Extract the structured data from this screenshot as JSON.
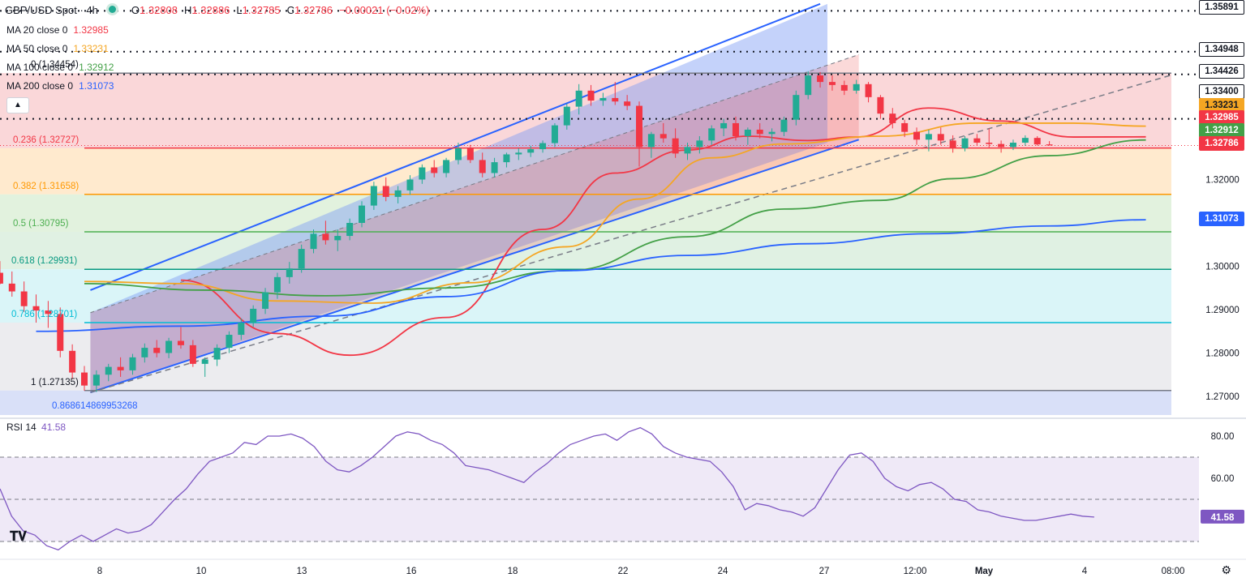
{
  "header": {
    "symbol": "GBP/USD Spot · 4h",
    "ohlc": [
      {
        "k": "O",
        "v": "1.32808"
      },
      {
        "k": "H",
        "v": "1.32886"
      },
      {
        "k": "L",
        "v": "1.32785"
      },
      {
        "k": "C",
        "v": "1.32786"
      },
      {
        "k": "",
        "v": "−0.00021 (−0.02%)"
      }
    ]
  },
  "indicators": [
    {
      "label": "MA 20 close 0",
      "value": "1.32985",
      "color": "#f23645"
    },
    {
      "label": "MA 50 close 0",
      "value": "1.33231",
      "color": "#f5a623"
    },
    {
      "label": "MA 100 close 0",
      "value": "1.32912",
      "color": "#43a047"
    },
    {
      "label": "MA 200 close 0",
      "value": "1.31073",
      "color": "#2962ff"
    }
  ],
  "fib_levels": [
    {
      "label": "0 (1.34454)",
      "price": 1.34454,
      "color": "#787b86",
      "fill": "#f8c9cc"
    },
    {
      "label": "0.236 (1.32727)",
      "price": 1.32727,
      "color": "#f23645",
      "fill": "#ffe3bd"
    },
    {
      "label": "0.382 (1.31658)",
      "price": 1.31658,
      "color": "#ff9800",
      "fill": "#d8edd3"
    },
    {
      "label": "0.5 (1.30795)",
      "price": 1.30795,
      "color": "#4caf50",
      "fill": "#d5ecd9"
    },
    {
      "label": "0.618 (1.29931)",
      "price": 1.29931,
      "color": "#089981",
      "fill": "#cdf2f6"
    },
    {
      "label": "0.786 (1.28701)",
      "price": 1.28701,
      "color": "#00bcd4",
      "fill": "#e6e6e9"
    },
    {
      "label": "1 (1.27135)",
      "price": 1.27135,
      "color": "#787b86",
      "fill": null
    }
  ],
  "fib_extension_label": "0.868614869953268",
  "price_labels": [
    {
      "text": "1.35891",
      "bg": "#ffffff",
      "fg": "#131722",
      "border": "#131722"
    },
    {
      "text": "1.34948",
      "bg": "#ffffff",
      "fg": "#131722",
      "border": "#131722"
    },
    {
      "text": "1.34426",
      "bg": "#ffffff",
      "fg": "#131722",
      "border": "#131722"
    },
    {
      "text": "1.33400",
      "bg": "#ffffff",
      "fg": "#131722",
      "border": "#131722"
    },
    {
      "text": "1.33231",
      "bg": "#f5a623",
      "fg": "#131722",
      "border": "#f5a623"
    },
    {
      "text": "1.32985",
      "bg": "#f23645",
      "fg": "#ffffff",
      "border": "#f23645"
    },
    {
      "text": "1.32912",
      "bg": "#43a047",
      "fg": "#ffffff",
      "border": "#43a047"
    },
    {
      "text": "1.32786",
      "bg": "#f23645",
      "fg": "#ffffff",
      "border": "#f23645"
    },
    {
      "text": "1.31073",
      "bg": "#2962ff",
      "fg": "#ffffff",
      "border": "#2962ff"
    }
  ],
  "dotted_levels": [
    1.35891,
    1.34948,
    1.34426,
    1.334
  ],
  "rsi": {
    "label": "RSI 14",
    "value": "41.58",
    "ticks": [
      "80.00",
      "60.00",
      "41.58"
    ],
    "upper": 70,
    "mid": 50,
    "lower": 30,
    "series": [
      55,
      42,
      35,
      33,
      28,
      26,
      30,
      33,
      30,
      33,
      36,
      34,
      35,
      38,
      44,
      50,
      55,
      62,
      68,
      70,
      72,
      77,
      76,
      80,
      80,
      81,
      79,
      75,
      68,
      64,
      63,
      66,
      70,
      75,
      80,
      82,
      81,
      78,
      76,
      72,
      66,
      65,
      64,
      62,
      60,
      58,
      63,
      67,
      72,
      76,
      78,
      80,
      81,
      78,
      82,
      84,
      81,
      75,
      72,
      70,
      69,
      68,
      63,
      56,
      45,
      48,
      47,
      45,
      44,
      42,
      46,
      55,
      64,
      71,
      72,
      68,
      60,
      56,
      54,
      57,
      58,
      55,
      50,
      49,
      45,
      44,
      42,
      41,
      40,
      40,
      41,
      42,
      43,
      42,
      41.58
    ]
  },
  "chart_data": {
    "type": "candlestick",
    "title": "",
    "y_ticks": [
      1.27,
      1.28,
      1.29,
      1.3,
      1.31,
      1.32
    ],
    "y_range": [
      1.2645,
      1.3605
    ],
    "x_ticks": [
      "8",
      "10",
      "13",
      "16",
      "18",
      "22",
      "24",
      "27",
      "12:00",
      "May",
      "4",
      "08:00"
    ],
    "candles": [
      [
        1.3005,
        1.3,
        1.2972,
        1.2985
      ],
      [
        1.2985,
        1.3012,
        1.2958,
        1.296
      ],
      [
        1.296,
        1.2988,
        1.293,
        1.2942
      ],
      [
        1.2942,
        1.2965,
        1.2895,
        1.2908
      ],
      [
        1.2908,
        1.2935,
        1.287,
        1.2898
      ],
      [
        1.2898,
        1.292,
        1.2858,
        1.289
      ],
      [
        1.289,
        1.2905,
        1.279,
        1.2805
      ],
      [
        1.2805,
        1.282,
        1.274,
        1.2755
      ],
      [
        1.2755,
        1.277,
        1.2713,
        1.2725
      ],
      [
        1.2725,
        1.276,
        1.271,
        1.275
      ],
      [
        1.275,
        1.2775,
        1.2735,
        1.2768
      ],
      [
        1.2768,
        1.279,
        1.2745,
        1.276
      ],
      [
        1.276,
        1.2798,
        1.275,
        1.279
      ],
      [
        1.279,
        1.2822,
        1.2778,
        1.2812
      ],
      [
        1.2812,
        1.283,
        1.279,
        1.28
      ],
      [
        1.28,
        1.2835,
        1.2788,
        1.2828
      ],
      [
        1.2828,
        1.286,
        1.281,
        1.2818
      ],
      [
        1.2818,
        1.283,
        1.2768,
        1.2775
      ],
      [
        1.2775,
        1.279,
        1.2745,
        1.2785
      ],
      [
        1.2785,
        1.282,
        1.277,
        1.2812
      ],
      [
        1.2812,
        1.285,
        1.28,
        1.2842
      ],
      [
        1.2842,
        1.288,
        1.283,
        1.287
      ],
      [
        1.287,
        1.291,
        1.286,
        1.2902
      ],
      [
        1.2902,
        1.295,
        1.289,
        1.294
      ],
      [
        1.294,
        1.2985,
        1.2925,
        1.2975
      ],
      [
        1.2975,
        1.301,
        1.296,
        1.2995
      ],
      [
        1.2995,
        1.305,
        1.2985,
        1.304
      ],
      [
        1.304,
        1.3085,
        1.303,
        1.3075
      ],
      [
        1.3075,
        1.3105,
        1.305,
        1.306
      ],
      [
        1.306,
        1.3085,
        1.3035,
        1.307
      ],
      [
        1.307,
        1.311,
        1.306,
        1.31
      ],
      [
        1.31,
        1.315,
        1.309,
        1.314
      ],
      [
        1.314,
        1.3195,
        1.313,
        1.3185
      ],
      [
        1.3185,
        1.3205,
        1.315,
        1.316
      ],
      [
        1.316,
        1.3185,
        1.3145,
        1.3175
      ],
      [
        1.3175,
        1.321,
        1.3165,
        1.32
      ],
      [
        1.32,
        1.3235,
        1.319,
        1.3228
      ],
      [
        1.3228,
        1.3245,
        1.3205,
        1.3215
      ],
      [
        1.3215,
        1.325,
        1.3205,
        1.3245
      ],
      [
        1.3245,
        1.3285,
        1.3235,
        1.3272
      ],
      [
        1.3272,
        1.328,
        1.3238,
        1.3245
      ],
      [
        1.3245,
        1.3262,
        1.3205,
        1.3215
      ],
      [
        1.3215,
        1.325,
        1.3205,
        1.324
      ],
      [
        1.324,
        1.3262,
        1.3228,
        1.3258
      ],
      [
        1.3258,
        1.3272,
        1.3245,
        1.3262
      ],
      [
        1.3262,
        1.3278,
        1.3252,
        1.327
      ],
      [
        1.327,
        1.329,
        1.3262,
        1.3284
      ],
      [
        1.3284,
        1.333,
        1.3275,
        1.3325
      ],
      [
        1.3325,
        1.3375,
        1.3315,
        1.3368
      ],
      [
        1.3368,
        1.342,
        1.335,
        1.3405
      ],
      [
        1.3405,
        1.3418,
        1.337,
        1.3382
      ],
      [
        1.3382,
        1.34,
        1.337,
        1.3388
      ],
      [
        1.3388,
        1.3425,
        1.3372,
        1.338
      ],
      [
        1.338,
        1.3395,
        1.336,
        1.337
      ],
      [
        1.337,
        1.338,
        1.323,
        1.3275
      ],
      [
        1.3275,
        1.331,
        1.325,
        1.3305
      ],
      [
        1.3305,
        1.333,
        1.3285,
        1.3295
      ],
      [
        1.3295,
        1.3318,
        1.325,
        1.326
      ],
      [
        1.326,
        1.3285,
        1.3245,
        1.3275
      ],
      [
        1.3275,
        1.33,
        1.326,
        1.329
      ],
      [
        1.329,
        1.3325,
        1.328,
        1.3318
      ],
      [
        1.3318,
        1.334,
        1.33,
        1.333
      ],
      [
        1.333,
        1.3345,
        1.329,
        1.33
      ],
      [
        1.33,
        1.332,
        1.328,
        1.3315
      ],
      [
        1.3315,
        1.333,
        1.3295,
        1.3305
      ],
      [
        1.3305,
        1.3318,
        1.3288,
        1.331
      ],
      [
        1.331,
        1.3345,
        1.33,
        1.3338
      ],
      [
        1.3338,
        1.3405,
        1.3325,
        1.3395
      ],
      [
        1.3395,
        1.345,
        1.3385,
        1.344
      ],
      [
        1.344,
        1.3448,
        1.3412,
        1.3425
      ],
      [
        1.3425,
        1.344,
        1.3405,
        1.3418
      ],
      [
        1.3418,
        1.3428,
        1.3395,
        1.3405
      ],
      [
        1.3405,
        1.343,
        1.3398,
        1.342
      ],
      [
        1.342,
        1.3425,
        1.3378,
        1.339
      ],
      [
        1.339,
        1.3395,
        1.334,
        1.3352
      ],
      [
        1.3352,
        1.3365,
        1.3318,
        1.333
      ],
      [
        1.333,
        1.3338,
        1.3298,
        1.331
      ],
      [
        1.331,
        1.332,
        1.328,
        1.3292
      ],
      [
        1.3292,
        1.3315,
        1.3265,
        1.3305
      ],
      [
        1.3305,
        1.332,
        1.328,
        1.329
      ],
      [
        1.329,
        1.3302,
        1.3262,
        1.3272
      ],
      [
        1.3272,
        1.33,
        1.3265,
        1.3295
      ],
      [
        1.3295,
        1.3305,
        1.3278,
        1.3285
      ],
      [
        1.3285,
        1.3318,
        1.3272,
        1.3282
      ],
      [
        1.3282,
        1.329,
        1.3262,
        1.3275
      ],
      [
        1.3275,
        1.3292,
        1.3268,
        1.3285
      ],
      [
        1.3285,
        1.3302,
        1.3278,
        1.3296
      ],
      [
        1.3296,
        1.33,
        1.3278,
        1.3281
      ],
      [
        1.3281,
        1.32886,
        1.32785,
        1.32786
      ]
    ],
    "moving_averages": [
      {
        "name": "MA 20 close 0",
        "color": "#f23645",
        "points": [
          [
            8,
            1.2968
          ],
          [
            16,
            1.2845
          ],
          [
            22,
            1.2795
          ],
          [
            30,
            1.2882
          ],
          [
            38,
            1.3085
          ],
          [
            44,
            1.3215
          ],
          [
            50,
            1.3268
          ],
          [
            55,
            1.33
          ],
          [
            60,
            1.329
          ],
          [
            64,
            1.3298
          ],
          [
            70,
            1.3365
          ],
          [
            76,
            1.3335
          ],
          [
            82,
            1.3298
          ],
          [
            88,
            1.32985
          ]
        ]
      },
      {
        "name": "MA 50 close 0",
        "color": "#f5a623",
        "points": [
          [
            0,
            1.2965
          ],
          [
            8,
            1.296
          ],
          [
            16,
            1.292
          ],
          [
            24,
            1.2915
          ],
          [
            32,
            1.2962
          ],
          [
            40,
            1.3045
          ],
          [
            46,
            1.3155
          ],
          [
            52,
            1.325
          ],
          [
            58,
            1.3282
          ],
          [
            66,
            1.33
          ],
          [
            74,
            1.333
          ],
          [
            82,
            1.333
          ],
          [
            88,
            1.33231
          ]
        ]
      },
      {
        "name": "MA 100 close 0",
        "color": "#43a047",
        "points": [
          [
            0,
            1.296
          ],
          [
            10,
            1.2945
          ],
          [
            20,
            1.2932
          ],
          [
            30,
            1.295
          ],
          [
            40,
            1.299
          ],
          [
            50,
            1.3068
          ],
          [
            58,
            1.3132
          ],
          [
            66,
            1.3152
          ],
          [
            72,
            1.3202
          ],
          [
            80,
            1.3255
          ],
          [
            88,
            1.32912
          ]
        ]
      },
      {
        "name": "MA 200 close 0",
        "color": "#2962ff",
        "points": [
          [
            -4,
            1.285
          ],
          [
            8,
            1.2862
          ],
          [
            20,
            1.2885
          ],
          [
            30,
            1.293
          ],
          [
            40,
            1.299
          ],
          [
            50,
            1.3025
          ],
          [
            60,
            1.3052
          ],
          [
            70,
            1.3075
          ],
          [
            80,
            1.3093
          ],
          [
            88,
            1.31073
          ]
        ]
      }
    ]
  }
}
